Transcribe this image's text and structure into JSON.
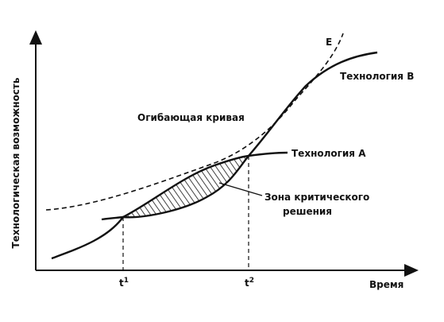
{
  "axes": {
    "y_label": "Технологическая возможность",
    "x_label": "Время"
  },
  "curves": {
    "envelope": "Огибающая кривая",
    "envelope_end": "E",
    "tech_a": "Технология А",
    "tech_b": "Технология В"
  },
  "zone": {
    "line1": "Зона критического",
    "line2": "решения"
  },
  "moments": [
    {
      "text": "t",
      "sup": "1"
    },
    {
      "text": "t",
      "sup": "2"
    }
  ]
}
